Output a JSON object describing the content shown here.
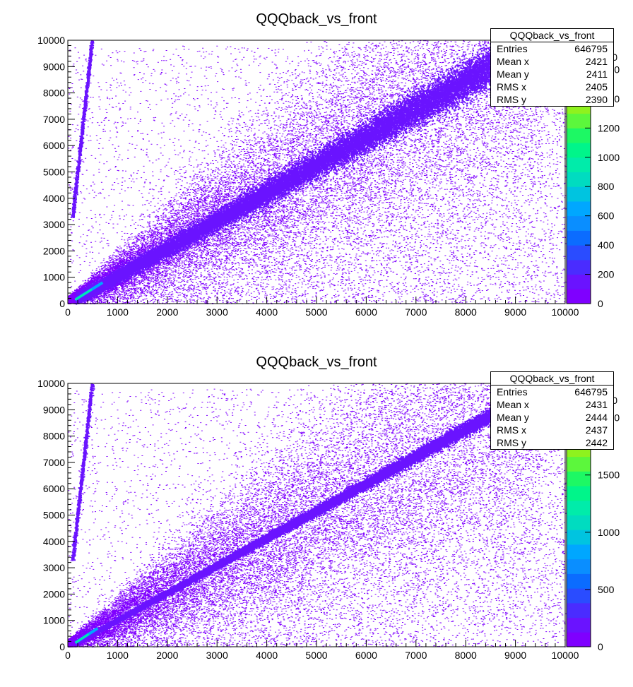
{
  "chart_data": [
    {
      "type": "heatmap",
      "title": "QQQback_vs_front",
      "xlabel": "",
      "ylabel": "",
      "xlim": [
        0,
        10000
      ],
      "ylim": [
        0,
        10000
      ],
      "x_ticks": [
        "0",
        "1000",
        "2000",
        "3000",
        "4000",
        "5000",
        "6000",
        "7000",
        "8000",
        "9000",
        "10000"
      ],
      "y_ticks": [
        "0",
        "1000",
        "2000",
        "3000",
        "4000",
        "5000",
        "6000",
        "7000",
        "8000",
        "9000",
        "10000"
      ],
      "z_ticks": [
        "0",
        "200",
        "400",
        "600",
        "800",
        "1000",
        "1200",
        "1400",
        "1600"
      ],
      "z_range": [
        0,
        1800
      ],
      "palette": [
        "#7f00ff",
        "#6a13ff",
        "#4a2cff",
        "#2a4cff",
        "#0b6cff",
        "#0a8eff",
        "#00a7ff",
        "#00c4e0",
        "#00dcc0",
        "#00ecaa",
        "#00f58a",
        "#1df864",
        "#5cf73c",
        "#8ff21e",
        "#b9ed19",
        "#dcef2a",
        "#f0ee3a",
        "#f6e84a"
      ],
      "features": {
        "main_band": {
          "from": [
            150,
            150
          ],
          "to": [
            8500,
            9000
          ],
          "note": "dense diagonal band y ≈ 1.06x"
        },
        "steep_band": {
          "from": [
            90,
            3300
          ],
          "to": [
            480,
            10000
          ]
        },
        "hot_spot": {
          "x": [
            150,
            700
          ],
          "y": [
            150,
            800
          ]
        }
      },
      "stats": {
        "name": "QQQback_vs_front",
        "rows": [
          {
            "label": "Entries",
            "value": "646795"
          },
          {
            "label": "Mean x",
            "value": "2421"
          },
          {
            "label": "Mean y",
            "value": "2411"
          },
          {
            "label": "RMS x",
            "value": "2405"
          },
          {
            "label": "RMS y",
            "value": "2390"
          }
        ]
      }
    },
    {
      "type": "heatmap",
      "title": "QQQback_vs_front",
      "xlabel": "",
      "ylabel": "",
      "xlim": [
        0,
        10000
      ],
      "ylim": [
        0,
        10000
      ],
      "x_ticks": [
        "0",
        "1000",
        "2000",
        "3000",
        "4000",
        "5000",
        "6000",
        "7000",
        "8000",
        "9000",
        "10000"
      ],
      "y_ticks": [
        "0",
        "1000",
        "2000",
        "3000",
        "4000",
        "5000",
        "6000",
        "7000",
        "8000",
        "9000",
        "10000"
      ],
      "z_ticks": [
        "0",
        "500",
        "1000",
        "1500",
        "2000"
      ],
      "z_range": [
        0,
        2300
      ],
      "palette": [
        "#7f00ff",
        "#6a13ff",
        "#4a2cff",
        "#2a4cff",
        "#0b6cff",
        "#0a8eff",
        "#00a7ff",
        "#00c4e0",
        "#00dcc0",
        "#00ecaa",
        "#00f58a",
        "#1df864",
        "#5cf73c",
        "#8ff21e",
        "#b9ed19",
        "#dcef2a",
        "#f0ee3a",
        "#f6e84a"
      ],
      "features": {
        "main_band": {
          "from": [
            150,
            150
          ],
          "to": [
            8500,
            8800
          ],
          "note": "narrow diagonal band y ≈ 1.03x"
        },
        "steep_band": {
          "from": [
            90,
            3300
          ],
          "to": [
            480,
            10000
          ]
        },
        "hot_spot": {
          "x": [
            150,
            600
          ],
          "y": [
            150,
            700
          ]
        }
      },
      "stats": {
        "name": "QQQback_vs_front",
        "rows": [
          {
            "label": "Entries",
            "value": "646795"
          },
          {
            "label": "Mean x",
            "value": "2431"
          },
          {
            "label": "Mean y",
            "value": "2444"
          },
          {
            "label": "RMS x",
            "value": "2437"
          },
          {
            "label": "RMS y",
            "value": "2442"
          }
        ]
      }
    }
  ]
}
